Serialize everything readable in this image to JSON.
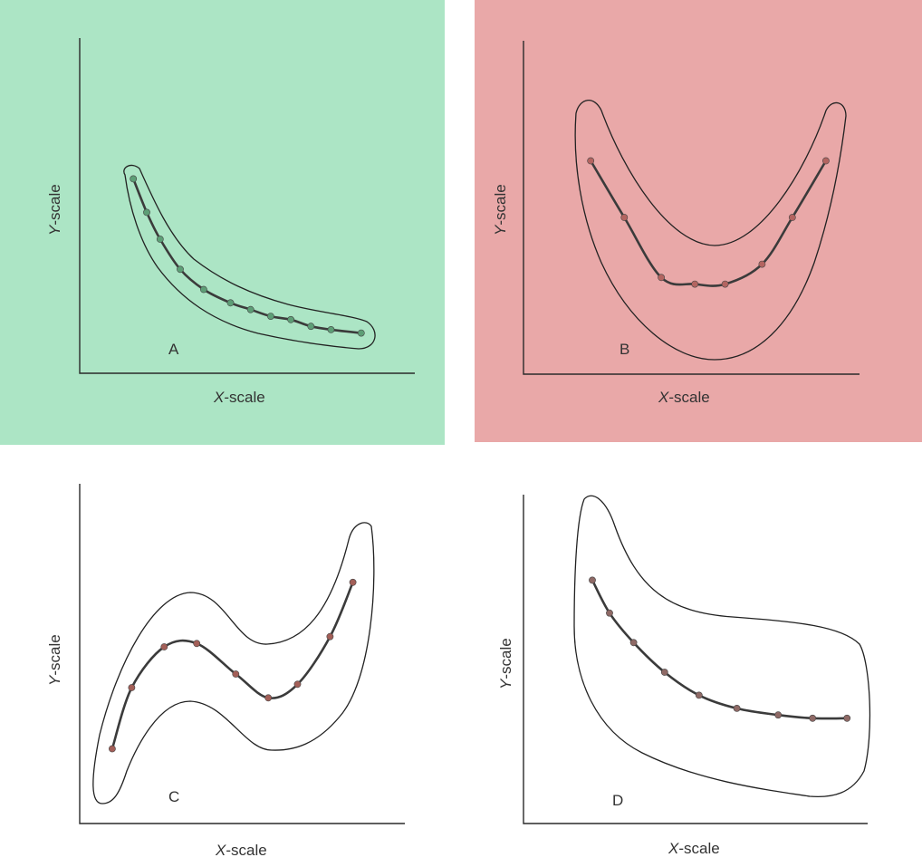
{
  "colors": {
    "panel_a_bg": "#ace5c5",
    "panel_b_bg": "#e9a8a8",
    "panel_c_bg": "#ffffff",
    "panel_d_bg": "#ffffff",
    "panel_a_points": "#5d9e76",
    "panel_b_points": "#b36460",
    "panel_c_points": "#a35f58",
    "panel_d_points": "#8f6a66"
  },
  "panels": [
    {
      "id": "A",
      "letter": "A",
      "xlabel_var": "X",
      "xlabel_rest": "-scale",
      "ylabel_var": "Y",
      "ylabel_rest": "-scale"
    },
    {
      "id": "B",
      "letter": "B",
      "xlabel_var": "X",
      "xlabel_rest": "-scale",
      "ylabel_var": "Y",
      "ylabel_rest": "-scale"
    },
    {
      "id": "C",
      "letter": "C",
      "xlabel_var": "X",
      "xlabel_rest": "-scale",
      "ylabel_var": "Y",
      "ylabel_rest": "-scale"
    },
    {
      "id": "D",
      "letter": "D",
      "xlabel_var": "X",
      "xlabel_rest": "-scale",
      "ylabel_var": "Y",
      "ylabel_rest": "-scale"
    }
  ],
  "chart_data": [
    {
      "type": "line",
      "annotation": "A",
      "xlabel": "X-scale",
      "ylabel": "Y-scale",
      "band": "narrow envelope around curve",
      "background": "green",
      "grid": false,
      "points": [
        {
          "x": 0.16,
          "y": 0.58
        },
        {
          "x": 0.2,
          "y": 0.48
        },
        {
          "x": 0.24,
          "y": 0.4
        },
        {
          "x": 0.3,
          "y": 0.31
        },
        {
          "x": 0.37,
          "y": 0.25
        },
        {
          "x": 0.45,
          "y": 0.21
        },
        {
          "x": 0.51,
          "y": 0.19
        },
        {
          "x": 0.57,
          "y": 0.17
        },
        {
          "x": 0.63,
          "y": 0.16
        },
        {
          "x": 0.69,
          "y": 0.14
        },
        {
          "x": 0.75,
          "y": 0.13
        },
        {
          "x": 0.84,
          "y": 0.12
        }
      ]
    },
    {
      "type": "line",
      "annotation": "B",
      "xlabel": "X-scale",
      "ylabel": "Y-scale",
      "band": "wide U-shaped envelope around curve",
      "background": "red",
      "grid": false,
      "points": [
        {
          "x": 0.2,
          "y": 0.64
        },
        {
          "x": 0.3,
          "y": 0.47
        },
        {
          "x": 0.41,
          "y": 0.29
        },
        {
          "x": 0.51,
          "y": 0.27
        },
        {
          "x": 0.6,
          "y": 0.27
        },
        {
          "x": 0.71,
          "y": 0.33
        },
        {
          "x": 0.8,
          "y": 0.47
        },
        {
          "x": 0.9,
          "y": 0.64
        }
      ]
    },
    {
      "type": "line",
      "annotation": "C",
      "xlabel": "X-scale",
      "ylabel": "Y-scale",
      "band": "wide S-shaped envelope around curve",
      "background": "white",
      "grid": false,
      "points": [
        {
          "x": 0.1,
          "y": 0.22
        },
        {
          "x": 0.16,
          "y": 0.4
        },
        {
          "x": 0.26,
          "y": 0.52
        },
        {
          "x": 0.36,
          "y": 0.53
        },
        {
          "x": 0.48,
          "y": 0.44
        },
        {
          "x": 0.58,
          "y": 0.37
        },
        {
          "x": 0.67,
          "y": 0.41
        },
        {
          "x": 0.77,
          "y": 0.55
        },
        {
          "x": 0.84,
          "y": 0.71
        }
      ]
    },
    {
      "type": "line",
      "annotation": "D",
      "xlabel": "X-scale",
      "ylabel": "Y-scale",
      "band": "large asymmetric envelope around curve",
      "background": "white",
      "grid": false,
      "points": [
        {
          "x": 0.2,
          "y": 0.74
        },
        {
          "x": 0.25,
          "y": 0.64
        },
        {
          "x": 0.32,
          "y": 0.55
        },
        {
          "x": 0.41,
          "y": 0.46
        },
        {
          "x": 0.51,
          "y": 0.39
        },
        {
          "x": 0.62,
          "y": 0.35
        },
        {
          "x": 0.74,
          "y": 0.33
        },
        {
          "x": 0.84,
          "y": 0.32
        },
        {
          "x": 0.94,
          "y": 0.32
        }
      ]
    }
  ]
}
